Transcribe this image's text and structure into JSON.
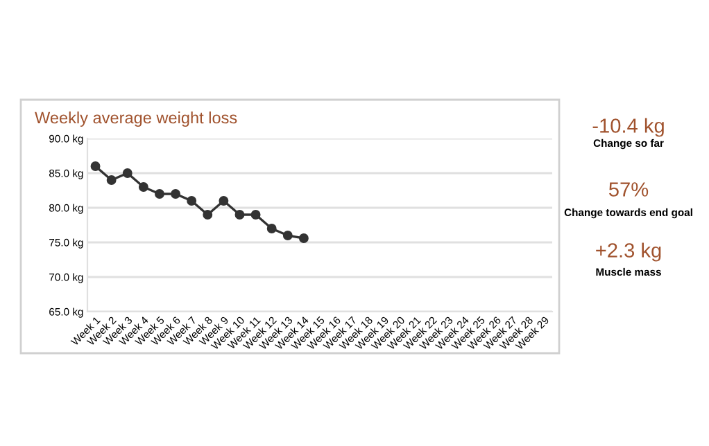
{
  "chart_data": [
    {
      "type": "line",
      "title": "Weekly average weight loss",
      "categories": [
        "Week 1",
        "Week 2",
        "Week 3",
        "Week 4",
        "Week 5",
        "Week 6",
        "Week 7",
        "Week 8",
        "Week 9",
        "Week 10",
        "Week 11",
        "Week 12",
        "Week 13",
        "Week 14",
        "Week 15",
        "Week 16",
        "Week 17",
        "Week 18",
        "Week 19",
        "Week 20",
        "Week 21",
        "Week 22",
        "Week 23",
        "Week 24",
        "Week 25",
        "Week 26",
        "Week 27",
        "Week 28",
        "Week 29"
      ],
      "series": [
        {
          "color": "#333333",
          "values": [
            86,
            84,
            85,
            83,
            82,
            82,
            81,
            79,
            81,
            79,
            79,
            77,
            76,
            75.6,
            null,
            null,
            null,
            null,
            null,
            null,
            null,
            null,
            null,
            null,
            null,
            null,
            null,
            null,
            null
          ]
        }
      ],
      "ylim": [
        65,
        90
      ],
      "yticks": [
        {
          "value": 65,
          "label": "65.0 kg"
        },
        {
          "value": 70,
          "label": "70.0 kg"
        },
        {
          "value": 75,
          "label": "75.0 kg"
        },
        {
          "value": 80,
          "label": "80.0 kg"
        },
        {
          "value": 85,
          "label": "85.0 kg"
        },
        {
          "value": 90,
          "label": "90.0 kg"
        }
      ],
      "grid": "y",
      "marker": "circle",
      "line_style": "solid"
    },
    {
      "type": "other",
      "annotations": [
        "-10.4 kg",
        "Change so far",
        "57%",
        "Change towards end goal",
        "+2.3 kg",
        "Muscle mass"
      ]
    }
  ]
}
